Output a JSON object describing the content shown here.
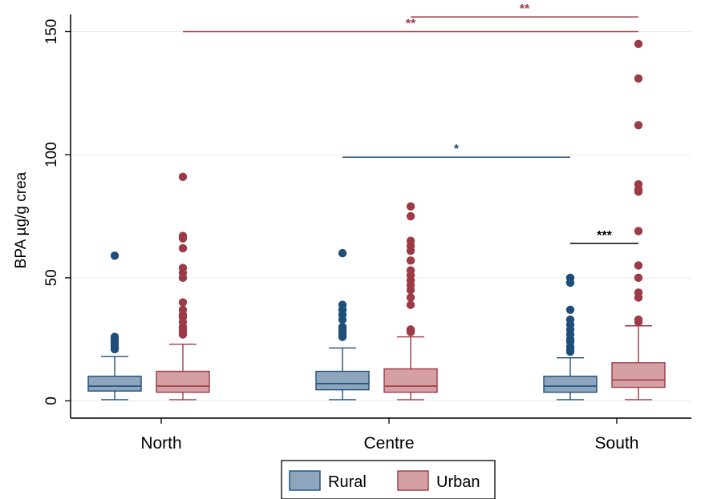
{
  "chart_data": {
    "type": "box",
    "ylabel": "BPA  µg/g crea",
    "ylim": [
      -7,
      157
    ],
    "yticks": [
      0,
      50,
      100,
      150
    ],
    "grid": true,
    "categories": [
      "North",
      "Centre",
      "South"
    ],
    "legend": {
      "placement": "bottom-center",
      "entries": [
        "Rural",
        "Urban"
      ]
    },
    "colors": {
      "Rural": {
        "fill": "#8ea6bd",
        "stroke": "#1f4e79"
      },
      "Urban": {
        "fill": "#d4a0a4",
        "stroke": "#9c3a45"
      },
      "black": "#000000"
    },
    "series": [
      {
        "name": "Rural",
        "boxes": [
          {
            "category": "North",
            "whisker_low": 0.5,
            "q1": 4,
            "median": 6,
            "q3": 10,
            "whisker_high": 18,
            "outliers": [
              21,
              22,
              23,
              24,
              25,
              26,
              59
            ]
          },
          {
            "category": "Centre",
            "whisker_low": 0.5,
            "q1": 4.5,
            "median": 7,
            "q3": 12,
            "whisker_high": 21.5,
            "outliers": [
              26,
              27,
              28,
              29,
              30,
              33,
              35,
              37,
              39,
              60
            ]
          },
          {
            "category": "South",
            "whisker_low": 0.5,
            "q1": 3.5,
            "median": 6,
            "q3": 10,
            "whisker_high": 17.5,
            "outliers": [
              20,
              21,
              22,
              24,
              25,
              27,
              29,
              31,
              33,
              37,
              48,
              50
            ]
          }
        ]
      },
      {
        "name": "Urban",
        "boxes": [
          {
            "category": "North",
            "whisker_low": 0.5,
            "q1": 3.5,
            "median": 6,
            "q3": 12,
            "whisker_high": 23,
            "outliers": [
              27,
              28,
              29,
              30,
              32,
              34,
              35,
              37,
              40,
              50,
              52,
              54,
              62,
              66,
              67,
              91
            ]
          },
          {
            "category": "Centre",
            "whisker_low": 0.5,
            "q1": 3.5,
            "median": 6,
            "q3": 13,
            "whisker_high": 26,
            "outliers": [
              28,
              29,
              39,
              42,
              45,
              47,
              49,
              51,
              53,
              57,
              61,
              63,
              65,
              75,
              79
            ]
          },
          {
            "category": "South",
            "whisker_low": 0.5,
            "q1": 5.5,
            "median": 8.5,
            "q3": 15.5,
            "whisker_high": 30.5,
            "outliers": [
              32,
              33,
              42,
              44,
              50,
              55,
              69,
              85,
              86,
              88,
              112,
              131,
              145
            ]
          }
        ]
      }
    ],
    "significance": [
      {
        "label": "**",
        "y": 156,
        "from": "Centre-Urban",
        "to": "South-Urban",
        "color": "Urban"
      },
      {
        "label": "**",
        "y": 150,
        "from": "North-Urban",
        "to": "South-Urban",
        "color": "Urban"
      },
      {
        "label": "*",
        "y": 99,
        "from": "Centre-Rural",
        "to": "South-Rural",
        "color": "Rural"
      },
      {
        "label": "***",
        "y": 64,
        "from": "South-Rural",
        "to": "South-Urban",
        "color": "black"
      }
    ]
  }
}
